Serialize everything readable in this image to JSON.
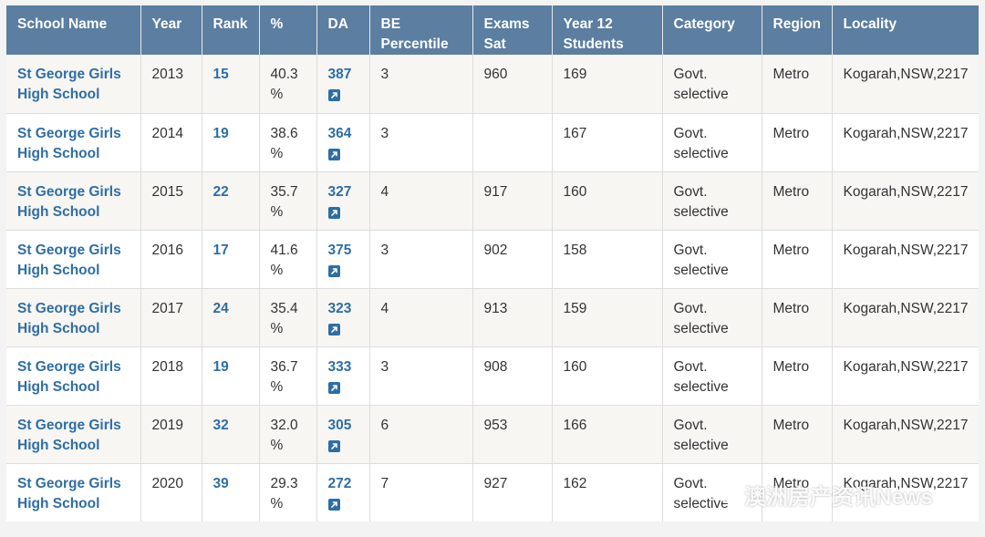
{
  "table": {
    "headers": [
      {
        "line1": "School Name",
        "line2": ""
      },
      {
        "line1": "Year",
        "line2": ""
      },
      {
        "line1": "Rank",
        "line2": ""
      },
      {
        "line1": "%",
        "line2": ""
      },
      {
        "line1": "DA",
        "line2": ""
      },
      {
        "line1": "BE",
        "line2": "Percentile"
      },
      {
        "line1": "Exams",
        "line2": "Sat"
      },
      {
        "line1": "Year 12",
        "line2": "Students"
      },
      {
        "line1": "Category",
        "line2": ""
      },
      {
        "line1": "Region",
        "line2": ""
      },
      {
        "line1": "Locality",
        "line2": ""
      }
    ],
    "rows": [
      {
        "school_line1": "St George Girls",
        "school_line2": "High School",
        "year": "2013",
        "rank": "15",
        "pct_line1": "40.3",
        "pct_line2": "%",
        "da": "387",
        "be": "3",
        "exams": "960",
        "students": "169",
        "cat_line1": "Govt.",
        "cat_line2": "selective",
        "region": "Metro",
        "locality": "Kogarah,NSW,2217"
      },
      {
        "school_line1": "St George Girls",
        "school_line2": "High School",
        "year": "2014",
        "rank": "19",
        "pct_line1": "38.6",
        "pct_line2": "%",
        "da": "364",
        "be": "3",
        "exams": "",
        "students": "167",
        "cat_line1": "Govt.",
        "cat_line2": "selective",
        "region": "Metro",
        "locality": "Kogarah,NSW,2217"
      },
      {
        "school_line1": "St George Girls",
        "school_line2": "High School",
        "year": "2015",
        "rank": "22",
        "pct_line1": "35.7",
        "pct_line2": "%",
        "da": "327",
        "be": "4",
        "exams": "917",
        "students": "160",
        "cat_line1": "Govt.",
        "cat_line2": "selective",
        "region": "Metro",
        "locality": "Kogarah,NSW,2217"
      },
      {
        "school_line1": "St George Girls",
        "school_line2": "High School",
        "year": "2016",
        "rank": "17",
        "pct_line1": "41.6",
        "pct_line2": "%",
        "da": "375",
        "be": "3",
        "exams": "902",
        "students": "158",
        "cat_line1": "Govt.",
        "cat_line2": "selective",
        "region": "Metro",
        "locality": "Kogarah,NSW,2217"
      },
      {
        "school_line1": "St George Girls",
        "school_line2": "High School",
        "year": "2017",
        "rank": "24",
        "pct_line1": "35.4",
        "pct_line2": "%",
        "da": "323",
        "be": "4",
        "exams": "913",
        "students": "159",
        "cat_line1": "Govt.",
        "cat_line2": "selective",
        "region": "Metro",
        "locality": "Kogarah,NSW,2217"
      },
      {
        "school_line1": "St George Girls",
        "school_line2": "High School",
        "year": "2018",
        "rank": "19",
        "pct_line1": "36.7",
        "pct_line2": "%",
        "da": "333",
        "be": "3",
        "exams": "908",
        "students": "160",
        "cat_line1": "Govt.",
        "cat_line2": "selective",
        "region": "Metro",
        "locality": "Kogarah,NSW,2217"
      },
      {
        "school_line1": "St George Girls",
        "school_line2": "High School",
        "year": "2019",
        "rank": "32",
        "pct_line1": "32.0",
        "pct_line2": "%",
        "da": "305",
        "be": "6",
        "exams": "953",
        "students": "166",
        "cat_line1": "Govt.",
        "cat_line2": "selective",
        "region": "Metro",
        "locality": "Kogarah,NSW,2217"
      },
      {
        "school_line1": "St George Girls",
        "school_line2": "High School",
        "year": "2020",
        "rank": "39",
        "pct_line1": "29.3",
        "pct_line2": "%",
        "da": "272",
        "be": "7",
        "exams": "927",
        "students": "162",
        "cat_line1": "Govt.",
        "cat_line2": "selective",
        "region": "Metro",
        "locality": "Kogarah,NSW,2217"
      }
    ]
  },
  "icons": {
    "da_link": "external-link-icon",
    "watermark": "wechat-icon"
  },
  "colors": {
    "header_bg": "#5b7ea1",
    "link": "#2e6ea5",
    "row_alt": "#f7f6f3",
    "row": "#ffffff"
  },
  "watermark": {
    "text": "澳洲房产资讯News"
  }
}
